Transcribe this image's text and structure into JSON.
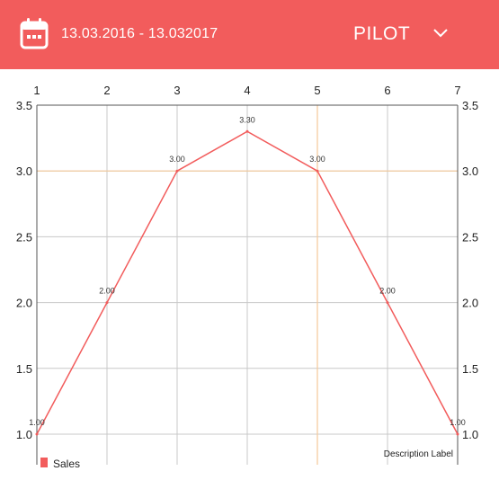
{
  "header": {
    "date_range": "13.03.2016 - 13.032017",
    "selector_value": "PILOT",
    "calendar_icon": "calendar-icon",
    "dropdown_icon": "chevron-down-icon",
    "background_color": "#f25c5c"
  },
  "chart_data": {
    "type": "line",
    "x": [
      1,
      2,
      3,
      4,
      5,
      6,
      7
    ],
    "xlim": [
      1,
      7
    ],
    "ylim": [
      1.0,
      3.5
    ],
    "y_ticks": [
      "1.0",
      "1.5",
      "2.0",
      "2.5",
      "3.0",
      "3.5"
    ],
    "x_ticks": [
      "1",
      "2",
      "3",
      "4",
      "5",
      "6",
      "7"
    ],
    "series": [
      {
        "name": "Sales",
        "color": "#f25c5c",
        "values": [
          1.0,
          2.0,
          3.0,
          3.3,
          3.0,
          2.0,
          1.0
        ],
        "value_labels": [
          "1.00",
          "2.00",
          "3.00",
          "3.30",
          "3.00",
          "2.00",
          "1.00"
        ]
      }
    ],
    "highlight": {
      "x": 5,
      "y": 3.0,
      "color": "#f5c99a"
    },
    "description": "Description Label",
    "grid": true,
    "legend_position": "bottom-left",
    "axes": "left, right and top"
  }
}
